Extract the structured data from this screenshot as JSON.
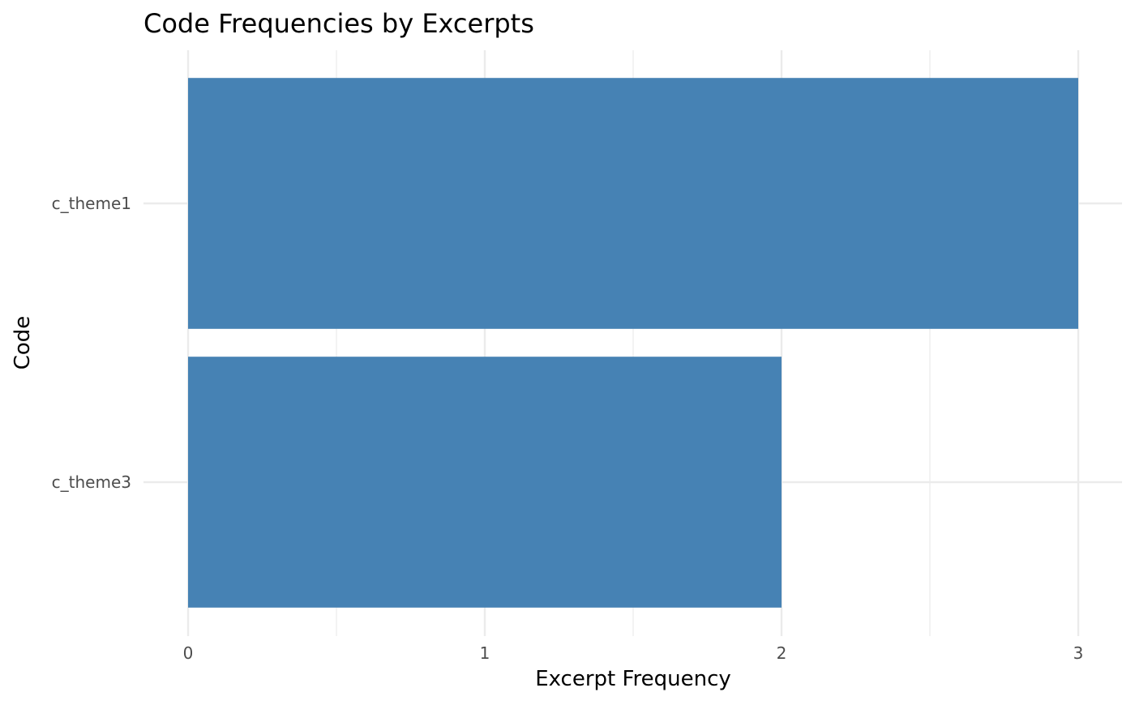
{
  "chart_data": {
    "type": "bar",
    "orientation": "horizontal",
    "title": "Code Frequencies by Excerpts",
    "xlabel": "Excerpt Frequency",
    "ylabel": "Code",
    "categories": [
      "c_theme1",
      "c_theme3"
    ],
    "values": [
      3,
      2
    ],
    "xlim": [
      0,
      3
    ],
    "xticks": [
      0,
      1,
      2,
      3
    ],
    "grid": true,
    "legend": "none",
    "bar_color": "#4682b4",
    "grid_color": "#ebebeb"
  }
}
